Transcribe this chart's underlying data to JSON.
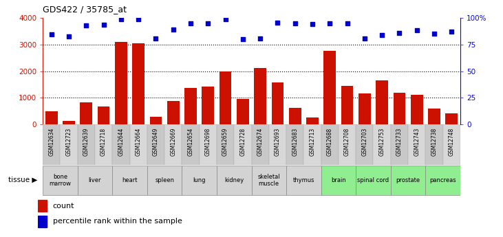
{
  "title": "GDS422 / 35785_at",
  "samples": [
    "GSM12634",
    "GSM12723",
    "GSM12639",
    "GSM12718",
    "GSM12644",
    "GSM12664",
    "GSM12649",
    "GSM12669",
    "GSM12654",
    "GSM12698",
    "GSM12659",
    "GSM12728",
    "GSM12674",
    "GSM12693",
    "GSM12683",
    "GSM12713",
    "GSM12688",
    "GSM12708",
    "GSM12703",
    "GSM12753",
    "GSM12733",
    "GSM12743",
    "GSM12738",
    "GSM12748"
  ],
  "counts": [
    480,
    120,
    820,
    680,
    3100,
    3050,
    290,
    870,
    1380,
    1420,
    2000,
    950,
    2120,
    1570,
    610,
    270,
    2770,
    1450,
    1150,
    1640,
    1180,
    1110,
    590,
    420
  ],
  "percentiles": [
    84.5,
    82.3,
    93.0,
    93.3,
    98.5,
    98.8,
    80.5,
    88.8,
    95.0,
    95.0,
    98.8,
    80.0,
    80.8,
    95.5,
    94.5,
    94.3,
    95.0,
    95.0,
    80.5,
    84.0,
    86.0,
    88.3,
    84.8,
    87.3
  ],
  "tissues": [
    {
      "label": "bone\nmarrow",
      "start": 0,
      "end": 2,
      "color": "#d3d3d3"
    },
    {
      "label": "liver",
      "start": 2,
      "end": 4,
      "color": "#d3d3d3"
    },
    {
      "label": "heart",
      "start": 4,
      "end": 6,
      "color": "#d3d3d3"
    },
    {
      "label": "spleen",
      "start": 6,
      "end": 8,
      "color": "#d3d3d3"
    },
    {
      "label": "lung",
      "start": 8,
      "end": 10,
      "color": "#d3d3d3"
    },
    {
      "label": "kidney",
      "start": 10,
      "end": 12,
      "color": "#d3d3d3"
    },
    {
      "label": "skeletal\nmuscle",
      "start": 12,
      "end": 14,
      "color": "#d3d3d3"
    },
    {
      "label": "thymus",
      "start": 14,
      "end": 16,
      "color": "#d3d3d3"
    },
    {
      "label": "brain",
      "start": 16,
      "end": 18,
      "color": "#90ee90"
    },
    {
      "label": "spinal cord",
      "start": 18,
      "end": 20,
      "color": "#90ee90"
    },
    {
      "label": "prostate",
      "start": 20,
      "end": 22,
      "color": "#90ee90"
    },
    {
      "label": "pancreas",
      "start": 22,
      "end": 24,
      "color": "#90ee90"
    }
  ],
  "ylim_left": [
    0,
    4000
  ],
  "yticks_left": [
    0,
    1000,
    2000,
    3000,
    4000
  ],
  "yticks_right": [
    0,
    25,
    50,
    75,
    100
  ],
  "bar_color": "#cc1100",
  "dot_color": "#0000cc",
  "xticklabel_bg": "#d3d3d3"
}
